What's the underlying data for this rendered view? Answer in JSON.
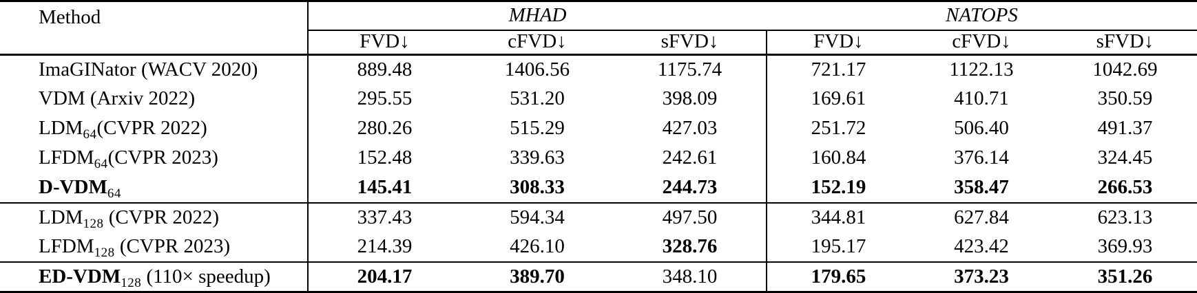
{
  "colors": {
    "text": "#000000",
    "background": "#ffffff",
    "rule": "#000000"
  },
  "table": {
    "method_header": "Method",
    "groups": [
      {
        "title": "MHAD",
        "metrics": [
          "FVD↓",
          "cFVD↓",
          "sFVD↓"
        ]
      },
      {
        "title": "NATOPS",
        "metrics": [
          "FVD↓",
          "cFVD↓",
          "sFVD↓"
        ]
      }
    ],
    "rows": [
      {
        "method": {
          "name": "ImaGINator",
          "bold": false,
          "sub": "",
          "suffix": " (WACV 2020)"
        },
        "values": [
          {
            "v": "889.48",
            "bold": false
          },
          {
            "v": "1406.56",
            "bold": false
          },
          {
            "v": "1175.74",
            "bold": false
          },
          {
            "v": "721.17",
            "bold": false
          },
          {
            "v": "1122.13",
            "bold": false
          },
          {
            "v": "1042.69",
            "bold": false
          }
        ],
        "rule_after": false
      },
      {
        "method": {
          "name": "VDM",
          "bold": false,
          "sub": "",
          "suffix": " (Arxiv 2022)"
        },
        "values": [
          {
            "v": "295.55",
            "bold": false
          },
          {
            "v": "531.20",
            "bold": false
          },
          {
            "v": "398.09",
            "bold": false
          },
          {
            "v": "169.61",
            "bold": false
          },
          {
            "v": "410.71",
            "bold": false
          },
          {
            "v": "350.59",
            "bold": false
          }
        ],
        "rule_after": false
      },
      {
        "method": {
          "name": "LDM",
          "bold": false,
          "sub": "64",
          "suffix": "(CVPR 2022)"
        },
        "values": [
          {
            "v": "280.26",
            "bold": false
          },
          {
            "v": "515.29",
            "bold": false
          },
          {
            "v": "427.03",
            "bold": false
          },
          {
            "v": "251.72",
            "bold": false
          },
          {
            "v": "506.40",
            "bold": false
          },
          {
            "v": "491.37",
            "bold": false
          }
        ],
        "rule_after": false
      },
      {
        "method": {
          "name": "LFDM",
          "bold": false,
          "sub": "64",
          "suffix": "(CVPR 2023)"
        },
        "values": [
          {
            "v": "152.48",
            "bold": false
          },
          {
            "v": "339.63",
            "bold": false
          },
          {
            "v": "242.61",
            "bold": false
          },
          {
            "v": "160.84",
            "bold": false
          },
          {
            "v": "376.14",
            "bold": false
          },
          {
            "v": "324.45",
            "bold": false
          }
        ],
        "rule_after": false
      },
      {
        "method": {
          "name": "D-VDM",
          "bold": true,
          "sub": "64",
          "suffix": ""
        },
        "values": [
          {
            "v": "145.41",
            "bold": true
          },
          {
            "v": "308.33",
            "bold": true
          },
          {
            "v": "244.73",
            "bold": true
          },
          {
            "v": "152.19",
            "bold": true
          },
          {
            "v": "358.47",
            "bold": true
          },
          {
            "v": "266.53",
            "bold": true
          }
        ],
        "rule_after": true
      },
      {
        "method": {
          "name": "LDM",
          "bold": false,
          "sub": "128",
          "suffix": " (CVPR 2022)"
        },
        "values": [
          {
            "v": "337.43",
            "bold": false
          },
          {
            "v": "594.34",
            "bold": false
          },
          {
            "v": "497.50",
            "bold": false
          },
          {
            "v": "344.81",
            "bold": false
          },
          {
            "v": "627.84",
            "bold": false
          },
          {
            "v": "623.13",
            "bold": false
          }
        ],
        "rule_after": false
      },
      {
        "method": {
          "name": "LFDM",
          "bold": false,
          "sub": "128",
          "suffix": " (CVPR 2023)"
        },
        "values": [
          {
            "v": "214.39",
            "bold": false
          },
          {
            "v": "426.10",
            "bold": false
          },
          {
            "v": "328.76",
            "bold": true
          },
          {
            "v": "195.17",
            "bold": false
          },
          {
            "v": "423.42",
            "bold": false
          },
          {
            "v": "369.93",
            "bold": false
          }
        ],
        "rule_after": true
      },
      {
        "method": {
          "name": "ED-VDM",
          "bold": true,
          "sub": "128",
          "suffix": " (110× speedup)"
        },
        "values": [
          {
            "v": "204.17",
            "bold": true
          },
          {
            "v": "389.70",
            "bold": true
          },
          {
            "v": "348.10",
            "bold": false
          },
          {
            "v": "179.65",
            "bold": true
          },
          {
            "v": "373.23",
            "bold": true
          },
          {
            "v": "351.26",
            "bold": true
          }
        ],
        "rule_after": false
      }
    ]
  }
}
